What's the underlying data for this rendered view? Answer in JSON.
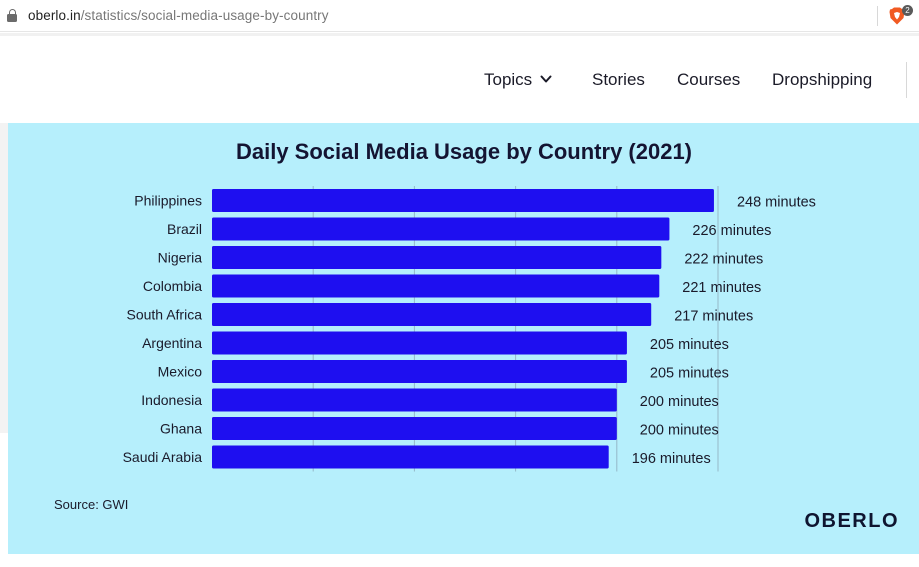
{
  "browser": {
    "url_host": "oberlo.in",
    "url_path": "/statistics/social-media-usage-by-country",
    "icons": {
      "lock": "lock-icon",
      "brave": "brave-shield-icon"
    },
    "brave_badge": "2"
  },
  "nav": {
    "items": [
      {
        "label": "Topics",
        "has_dropdown": true
      },
      {
        "label": "Stories"
      },
      {
        "label": "Courses"
      },
      {
        "label": "Dropshipping"
      }
    ]
  },
  "card": {
    "background": "#b6effc",
    "bar_color": "#1e0ff0",
    "source": "Source: GWI",
    "logo": "OBERLO"
  },
  "chart_data": {
    "type": "bar",
    "orientation": "horizontal",
    "title": "Daily Social Media Usage by Country (2021)",
    "categories": [
      "Philippines",
      "Brazil",
      "Nigeria",
      "Colombia",
      "South Africa",
      "Argentina",
      "Mexico",
      "Indonesia",
      "Ghana",
      "Saudi Arabia"
    ],
    "values": [
      248,
      226,
      222,
      221,
      217,
      205,
      205,
      200,
      200,
      196
    ],
    "value_labels": [
      "248 minutes",
      "226 minutes",
      "222 minutes",
      "221 minutes",
      "217 minutes",
      "205 minutes",
      "205 minutes",
      "200 minutes",
      "200 minutes",
      "196 minutes"
    ],
    "unit": "minutes",
    "xlim": [
      0,
      250
    ],
    "gridlines": [
      50,
      100,
      150,
      200,
      250
    ],
    "grid": true,
    "legend": "none"
  }
}
